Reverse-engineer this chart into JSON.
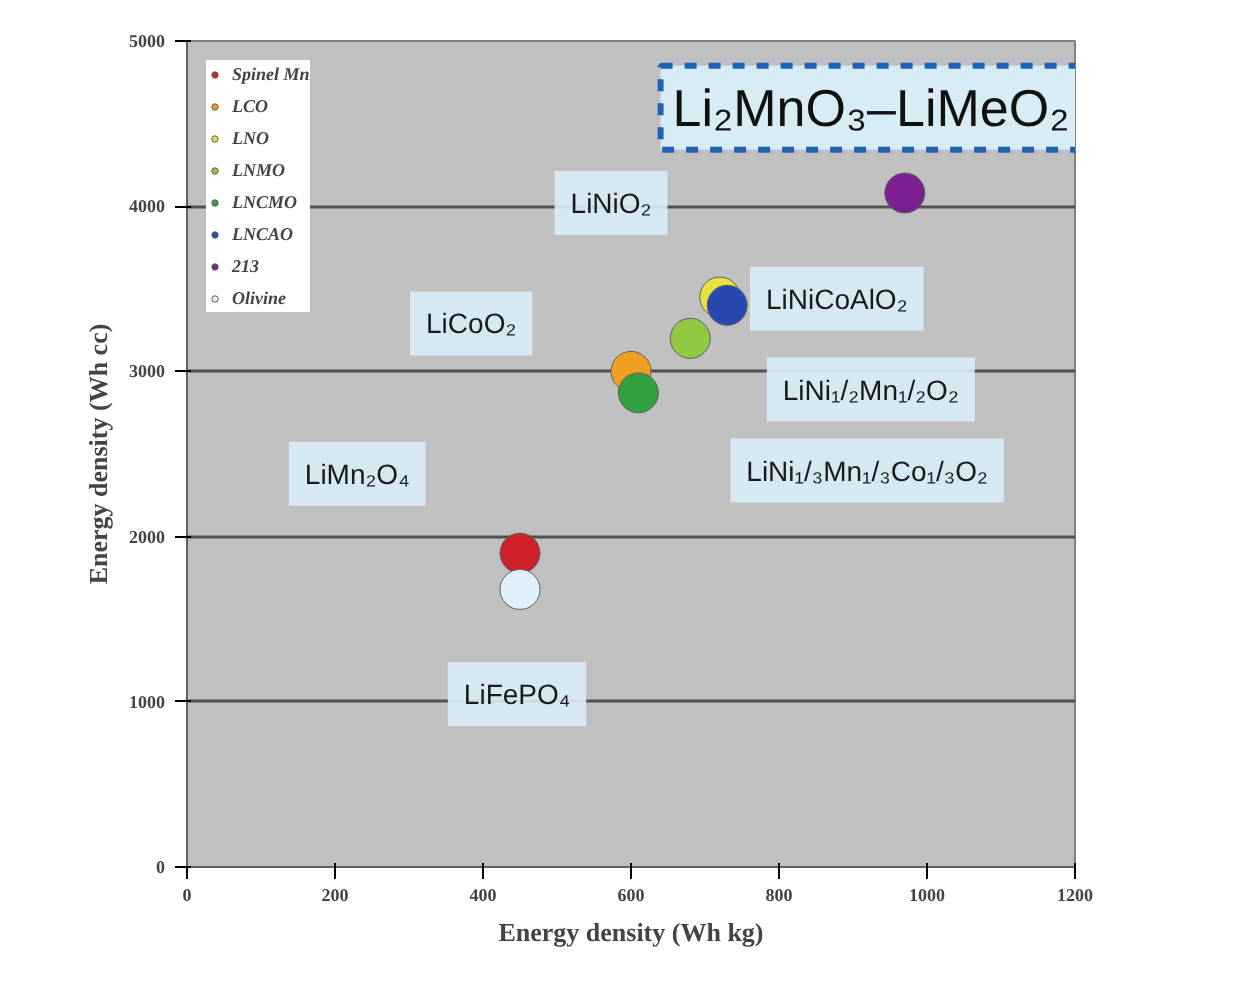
{
  "chart_data": {
    "type": "scatter",
    "title": "Li₂MnO₃–LiMeO₂",
    "xlabel": "Energy density (Wh kg)",
    "ylabel": "Energy density (Wh cc)",
    "xlim": [
      0,
      1200
    ],
    "xticks": [
      0,
      200,
      400,
      600,
      800,
      1000,
      1200
    ],
    "ylim": [
      0,
      5000
    ],
    "yticks": [
      0,
      1000,
      2000,
      3000,
      4000,
      5000
    ],
    "grid": "y",
    "legend": "top left",
    "marker": "circle",
    "series": [
      {
        "name": "Spinel Mn",
        "color": "#d0202a",
        "x": [
          450
        ],
        "values": [
          1900
        ]
      },
      {
        "name": "LCO",
        "color": "#f0a020",
        "x": [
          600
        ],
        "values": [
          3000
        ]
      },
      {
        "name": "LNO",
        "color": "#e8e040",
        "x": [
          720
        ],
        "values": [
          3450
        ]
      },
      {
        "name": "LNMO",
        "color": "#90c840",
        "x": [
          680
        ],
        "values": [
          3200
        ]
      },
      {
        "name": "LNCMO",
        "color": "#30a040",
        "x": [
          610
        ],
        "values": [
          2870
        ]
      },
      {
        "name": "LNCAO",
        "color": "#2848b0",
        "x": [
          730
        ],
        "values": [
          3400
        ]
      },
      {
        "name": "213",
        "color": "#7a2090",
        "x": [
          970
        ],
        "values": [
          4080
        ]
      },
      {
        "name": "Olivine",
        "color": "#dff0f8",
        "x": [
          450
        ],
        "values": [
          1680
        ]
      }
    ],
    "annotations": [
      "LiNiO₂",
      "LiCoO₂",
      "LiMn₂O₄",
      "LiFePO₄",
      "LiNiCoAlO₂",
      "LiNi₁/₂Mn₁/₂O₂",
      "LiNi₁/₃Mn₁/₃Co₁/₃O₂"
    ]
  }
}
